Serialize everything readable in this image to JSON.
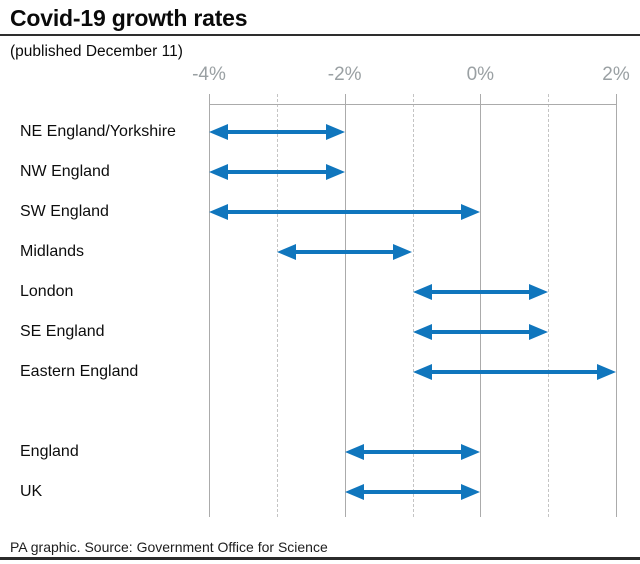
{
  "header": {
    "title": "Covid-19 growth rates",
    "subtitle": "(published December 11)"
  },
  "footer": {
    "source": "PA graphic. Source: Government Office for Science"
  },
  "chart_data": {
    "type": "bar",
    "subtype": "horizontal-range-arrows",
    "title": "Covid-19 growth rates",
    "subtitle": "(published December 11)",
    "xlabel": "",
    "ylabel": "",
    "unit": "%",
    "xlim": [
      -4,
      2
    ],
    "grid": true,
    "legend": "none",
    "axis_ticks": [
      {
        "value": -4,
        "label": "-4%",
        "major": true
      },
      {
        "value": -3,
        "label": "",
        "major": false
      },
      {
        "value": -2,
        "label": "-2%",
        "major": true
      },
      {
        "value": -1,
        "label": "",
        "major": false
      },
      {
        "value": 0,
        "label": "0%",
        "major": true
      },
      {
        "value": 1,
        "label": "",
        "major": false
      },
      {
        "value": 2,
        "label": "2%",
        "major": true
      }
    ],
    "categories": [
      "NE England/Yorkshire",
      "NW England",
      "SW England",
      "Midlands",
      "London",
      "SE England",
      "Eastern England",
      "England",
      "UK"
    ],
    "rows": [
      {
        "label": "NE England/Yorkshire",
        "low": -4,
        "high": -2,
        "row": 0
      },
      {
        "label": "NW England",
        "low": -4,
        "high": -2,
        "row": 1
      },
      {
        "label": "SW England",
        "low": -4,
        "high": 0,
        "row": 2
      },
      {
        "label": "Midlands",
        "low": -3,
        "high": -1,
        "row": 3
      },
      {
        "label": "London",
        "low": -1,
        "high": 1,
        "row": 4
      },
      {
        "label": "SE England",
        "low": -1,
        "high": 1,
        "row": 5
      },
      {
        "label": "Eastern England",
        "low": -1,
        "high": 2,
        "row": 6
      },
      {
        "label": "England",
        "low": -2,
        "high": 0,
        "row": 8
      },
      {
        "label": "UK",
        "low": -2,
        "high": 0,
        "row": 9
      }
    ],
    "colors": {
      "arrow": "#1076bd",
      "grid_major": "#ababab",
      "grid_minor": "#c4c4c4",
      "axis_text": "#9aa0a3",
      "title_text": "#0a0a0a",
      "rule": "#2e2e2e"
    }
  }
}
